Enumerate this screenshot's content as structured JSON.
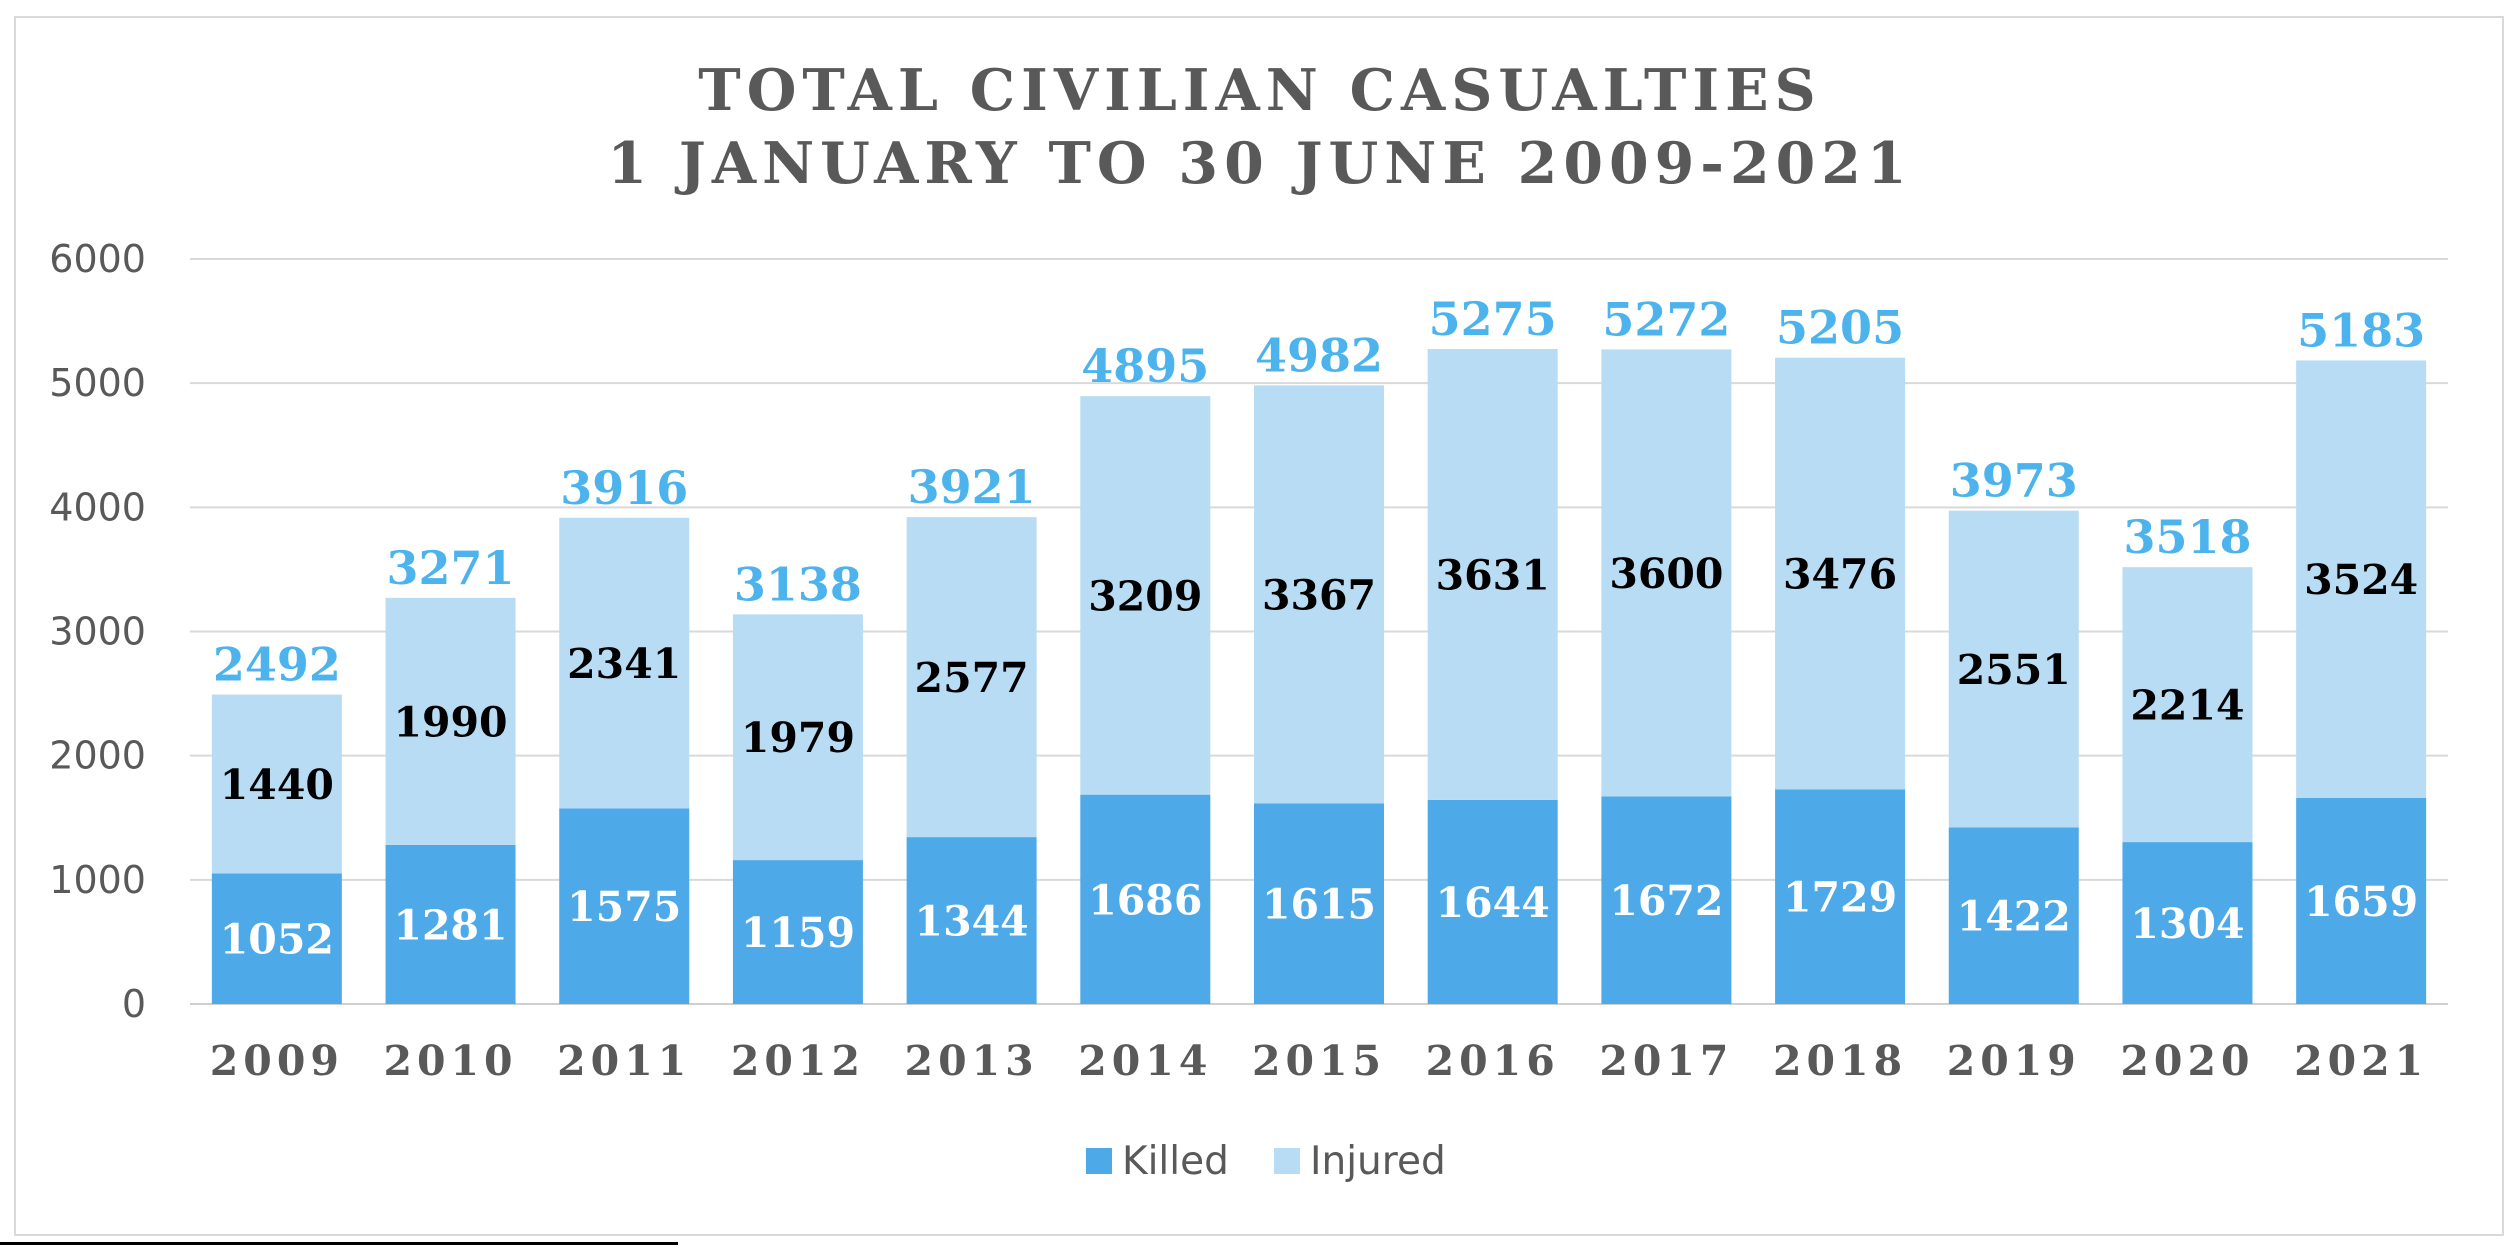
{
  "chart_data": {
    "type": "bar",
    "stacked": true,
    "title": "TOTAL CIVILIAN CASUALTIES",
    "subtitle": "1 JANUARY TO 30 JUNE 2009-2021",
    "xlabel": "",
    "ylabel": "",
    "ylim": [
      0,
      6000
    ],
    "yticks": [
      0,
      1000,
      2000,
      3000,
      4000,
      5000,
      6000
    ],
    "grid": true,
    "legend_position": "bottom",
    "categories": [
      "2009",
      "2010",
      "2011",
      "2012",
      "2013",
      "2014",
      "2015",
      "2016",
      "2017",
      "2018",
      "2019",
      "2020",
      "2021"
    ],
    "series": [
      {
        "name": "Killed",
        "color": "#4ea9e8",
        "values": [
          1052,
          1281,
          1575,
          1159,
          1344,
          1686,
          1615,
          1644,
          1672,
          1729,
          1422,
          1304,
          1659
        ]
      },
      {
        "name": "Injured",
        "color": "#b7dcf4",
        "values": [
          1440,
          1990,
          2341,
          1979,
          2577,
          3209,
          3367,
          3631,
          3600,
          3476,
          2551,
          2214,
          3524
        ]
      }
    ],
    "totals": [
      2492,
      3271,
      3916,
      3138,
      3921,
      4895,
      4982,
      5275,
      5272,
      5205,
      3973,
      3518,
      5183
    ],
    "total_label_color": "#4db3ec"
  }
}
